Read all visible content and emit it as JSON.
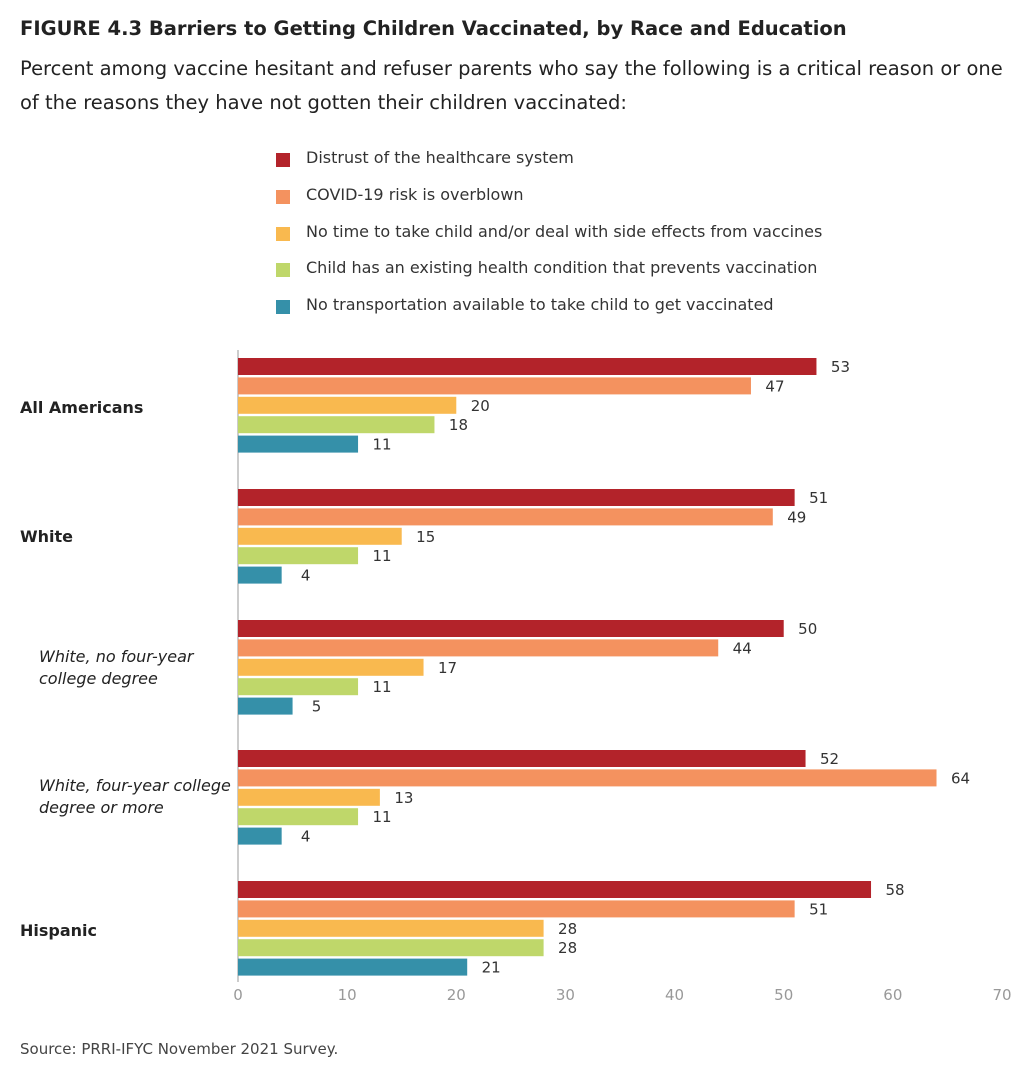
{
  "header": {
    "title": "FIGURE 4.3  Barriers to Getting Children Vaccinated, by Race and Education",
    "subtitle": "Percent among vaccine hesitant and refuser parents who say the following is a critical reason or one of the reasons they have not gotten their children vaccinated:"
  },
  "source": "Source: PRRI-IFYC November 2021 Survey.",
  "chart_data": {
    "type": "bar",
    "orientation": "horizontal",
    "title": "Barriers to Getting Children Vaccinated, by Race and Education",
    "categories": [
      "All Americans",
      "White",
      "White, no four-year college degree",
      "White, four-year college degree or more",
      "Hispanic"
    ],
    "category_styles": [
      "main",
      "main",
      "sub",
      "sub",
      "main"
    ],
    "category_lines": [
      [
        "All Americans"
      ],
      [
        "White"
      ],
      [
        "White, no four-year",
        "college degree"
      ],
      [
        "White, four-year college",
        "degree or more"
      ],
      [
        "Hispanic"
      ]
    ],
    "series": [
      {
        "name": "Distrust of the healthcare system",
        "color": "#b3232a",
        "values": [
          53,
          51,
          50,
          52,
          58
        ]
      },
      {
        "name": "COVID-19 risk is overblown",
        "color": "#f4925f",
        "values": [
          47,
          49,
          44,
          64,
          51
        ]
      },
      {
        "name": "No time to take child and/or deal with side effects from vaccines",
        "color": "#f9b94f",
        "values": [
          20,
          15,
          17,
          13,
          28
        ]
      },
      {
        "name": "Child has an existing health condition that prevents vaccination",
        "color": "#bfd76a",
        "values": [
          18,
          11,
          11,
          11,
          28
        ]
      },
      {
        "name": "No transportation available to take child to get vaccinated",
        "color": "#3590a9",
        "values": [
          11,
          4,
          5,
          4,
          21
        ]
      }
    ],
    "xlim": [
      0,
      70
    ],
    "xticks": [
      0,
      10,
      20,
      30,
      40,
      50,
      60,
      70
    ],
    "data_labels": true,
    "grid": false,
    "legend_position": "top"
  }
}
